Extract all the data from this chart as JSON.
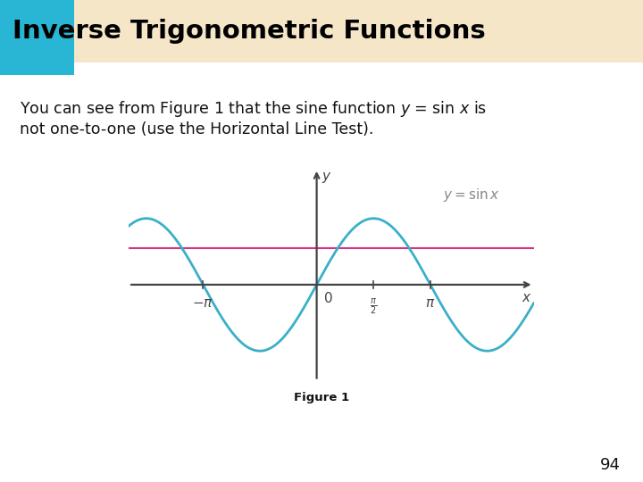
{
  "title": "Inverse Trigonometric Functions",
  "title_bg_color": "#f5e6c8",
  "title_box_color": "#29b6d4",
  "title_text_color": "#000000",
  "body_text_color": "#111111",
  "figure_label": "Figure 1",
  "page_number": "94",
  "bg_color": "#ffffff",
  "sine_color": "#3ab0c8",
  "hline_color": "#d63384",
  "hline_y": 0.55,
  "sine_label": "y = sin x",
  "xlabel": "x",
  "ylabel": "y",
  "x_tick_vals": [
    -3.14159,
    1.5708,
    3.14159
  ],
  "xlim": [
    -5.2,
    6.0
  ],
  "ylim": [
    -1.45,
    1.75
  ],
  "axis_color": "#444444"
}
